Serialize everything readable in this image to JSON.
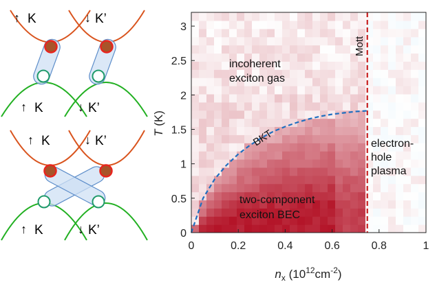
{
  "schematic": {
    "top": {
      "upper_left": "K",
      "upper_right": "K’",
      "lower_left": "K",
      "lower_right": "K’"
    },
    "bottom": {
      "upper_left": "K",
      "upper_right": "K’",
      "lower_left": "K",
      "lower_right": "K’"
    }
  },
  "chart_data": {
    "type": "heatmap",
    "x_label_var": "n",
    "x_label_sub": "x",
    "x_label_unit": " (10",
    "x_label_exp": "12",
    "x_label_unit2": "cm",
    "x_label_exp2": "-2",
    "x_label_close": ")",
    "y_label_var": "T",
    "y_label_unit": " (K)",
    "xlim": [
      0,
      1
    ],
    "ylim": [
      0,
      3.2
    ],
    "x_ticks": [
      "0",
      "0.2",
      "0.4",
      "0.6",
      "0.8",
      "1"
    ],
    "y_ticks": [
      "0",
      "0.5",
      "1",
      "1.5",
      "2",
      "2.5",
      "3"
    ],
    "mott_density": 0.75,
    "bkt_curve": {
      "label": "BKT",
      "x": [
        0.0,
        0.05,
        0.1,
        0.15,
        0.2,
        0.25,
        0.3,
        0.35,
        0.4,
        0.45,
        0.5,
        0.55,
        0.6,
        0.65,
        0.7,
        0.75
      ],
      "y": [
        0.0,
        0.5,
        0.78,
        0.98,
        1.14,
        1.27,
        1.38,
        1.47,
        1.54,
        1.6,
        1.65,
        1.69,
        1.72,
        1.74,
        1.76,
        1.77
      ]
    },
    "regions": {
      "mott": "Mott",
      "gas_line1": "incoherent",
      "gas_line2": "exciton gas",
      "plasma_line1": "electron-",
      "plasma_line2": "hole",
      "plasma_line3": "plasma",
      "bec_line1": "two-component",
      "bec_line2": "exciton BEC"
    }
  }
}
